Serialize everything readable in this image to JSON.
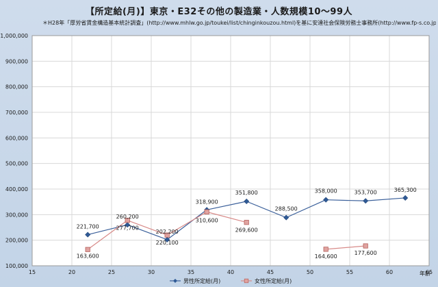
{
  "chart_data": {
    "type": "line",
    "title": "【所定給(月)】東京・E32その他の製造業・人数規模10～99人",
    "subtitle": "＊H28年「厚労省賃金構造基本統計調査」(http://www.mhlw.go.jp/toukei/list/chinginkouzou.html)を基に安達社会保険労務士事務所(http://www.fp-s.co.jp)が作成",
    "xlabel": "年齢",
    "ylabel": "",
    "xlim": [
      15,
      65
    ],
    "ylim": [
      100000,
      1000000
    ],
    "x_ticks": [
      "15",
      "20",
      "25",
      "30",
      "35",
      "40",
      "45",
      "50",
      "55",
      "60",
      "65"
    ],
    "y_ticks": [
      "100,000",
      "200,000",
      "300,000",
      "400,000",
      "500,000",
      "600,000",
      "700,000",
      "800,000",
      "900,000",
      "1,000,000"
    ],
    "grid": true,
    "legend_position": "bottom",
    "series": [
      {
        "name": "男性所定給(月)",
        "color": "#3a5f9a",
        "marker": "diamond",
        "points": [
          {
            "x": 22,
            "y": 221700,
            "label": "221,700"
          },
          {
            "x": 27,
            "y": 260200,
            "label": "260,200"
          },
          {
            "x": 32,
            "y": 202200,
            "label": "202,200"
          },
          {
            "x": 37,
            "y": 318900,
            "label": "318,900"
          },
          {
            "x": 42,
            "y": 351800,
            "label": "351,800"
          },
          {
            "x": 47,
            "y": 288500,
            "label": "288,500"
          },
          {
            "x": 52,
            "y": 358000,
            "label": "358,000"
          },
          {
            "x": 57,
            "y": 353700,
            "label": "353,700"
          },
          {
            "x": 62,
            "y": 365300,
            "label": "365,300"
          }
        ]
      },
      {
        "name": "女性所定給(月)",
        "color": "#d88a88",
        "marker": "square",
        "points": [
          {
            "x": 22,
            "y": 163600,
            "label": "163,600"
          },
          {
            "x": 27,
            "y": 277700,
            "label": "277,700"
          },
          {
            "x": 32,
            "y": 220100,
            "label": "220,100"
          },
          {
            "x": 37,
            "y": 310600,
            "label": "310,600"
          },
          {
            "x": 42,
            "y": 269600,
            "label": "269,600"
          },
          {
            "x": 52,
            "y": 164600,
            "label": "164,600"
          },
          {
            "x": 57,
            "y": 177600,
            "label": "177,600"
          }
        ]
      }
    ]
  }
}
